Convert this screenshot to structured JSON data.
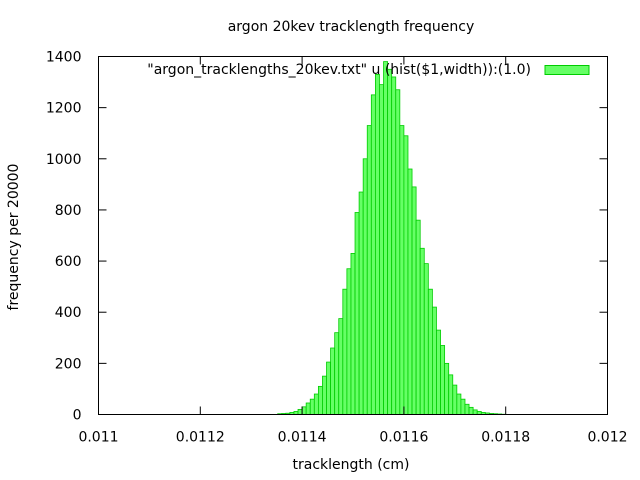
{
  "chart_data": {
    "type": "bar",
    "title": "argon 20kev tracklength frequency",
    "xlabel": "tracklength (cm)",
    "ylabel": "frequency per 20000",
    "xlim": [
      0.011,
      0.012
    ],
    "ylim": [
      0,
      1400
    ],
    "xticks": [
      "0.011",
      "0.0112",
      "0.0114",
      "0.0116",
      "0.0118",
      "0.012"
    ],
    "xtick_values": [
      0.011,
      0.0112,
      0.0114,
      0.0116,
      0.0118,
      0.012
    ],
    "yticks": [
      "0",
      "200",
      "400",
      "600",
      "800",
      "1000",
      "1200",
      "1400"
    ],
    "ytick_values": [
      0,
      200,
      400,
      600,
      800,
      1000,
      1200,
      1400
    ],
    "grid": false,
    "legend_position": "top-right",
    "bin_width": 8e-06,
    "series": [
      {
        "name": "\"argon_tracklengths_20kev.txt\" u (hist($1,width)):(1.0)",
        "color": "#66ff66",
        "edge_color": "#00cc00",
        "x": [
          0.011356,
          0.011364,
          0.011372,
          0.01138,
          0.011388,
          0.011396,
          0.011404,
          0.011412,
          0.01142,
          0.011428,
          0.011436,
          0.011444,
          0.011452,
          0.01146,
          0.011468,
          0.011476,
          0.011484,
          0.011492,
          0.0115,
          0.011508,
          0.011516,
          0.011524,
          0.011532,
          0.01154,
          0.011548,
          0.011556,
          0.011564,
          0.011572,
          0.01158,
          0.011588,
          0.011596,
          0.011604,
          0.011612,
          0.01162,
          0.011628,
          0.011636,
          0.011644,
          0.011652,
          0.01166,
          0.011668,
          0.011676,
          0.011684,
          0.011692,
          0.0117,
          0.011708,
          0.011716,
          0.011724,
          0.011732,
          0.01174,
          0.011748,
          0.011756,
          0.011764,
          0.011772,
          0.01178,
          0.011788,
          0.011796
        ],
        "values": [
          3,
          4,
          5,
          8,
          12,
          20,
          30,
          45,
          60,
          80,
          110,
          150,
          205,
          260,
          320,
          375,
          490,
          570,
          630,
          790,
          870,
          1000,
          1130,
          1250,
          1330,
          1290,
          1380,
          1350,
          1320,
          1270,
          1130,
          1090,
          960,
          890,
          760,
          650,
          590,
          490,
          420,
          330,
          270,
          200,
          155,
          115,
          80,
          60,
          40,
          28,
          18,
          12,
          8,
          6,
          4,
          3,
          2,
          1
        ]
      }
    ]
  }
}
